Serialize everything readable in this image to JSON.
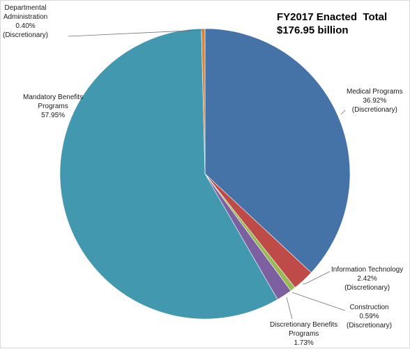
{
  "chart_data": {
    "type": "pie",
    "title": [
      "FY2017 Enacted  Total",
      "$176.95 billion"
    ],
    "slices": [
      {
        "name": "Medical Programs",
        "value": 36.92,
        "value_label": "36.92%",
        "note": "(Discretionary)",
        "color": "#4572a7"
      },
      {
        "name": "Information Technology",
        "value": 2.42,
        "value_label": "2.42%",
        "note": "(Discretionary)",
        "color": "#be4b48"
      },
      {
        "name": "Construction",
        "value": 0.59,
        "value_label": "0.59%",
        "note": "(Discretionary)",
        "color": "#98b954"
      },
      {
        "name": "Discretionary Benefits Programs",
        "value": 1.73,
        "value_label": "1.73%",
        "note": "",
        "color": "#7d60a0"
      },
      {
        "name": "Mandatory Benefits Programs",
        "value": 57.95,
        "value_label": "57.95%",
        "note": "",
        "color": "#4198af"
      },
      {
        "name": "Departmental Administration",
        "value": 0.4,
        "value_label": "0.40%",
        "note": "(Discretionary)",
        "color": "#db843d"
      }
    ],
    "label_lines": [
      [
        "Medical Programs",
        "36.92%",
        "(Discretionary)"
      ],
      [
        "Information Technology",
        "2.42%",
        "(Discretionary)"
      ],
      [
        "Construction",
        "0.59%",
        "(Discretionary)"
      ],
      [
        "Discretionary Benefits",
        "Programs",
        "1.73%"
      ],
      [
        "Mandatory Benefits",
        "Programs",
        "57.95%"
      ],
      [
        "Departmental",
        "Administration",
        "0.40%",
        "(Discretionary)"
      ]
    ]
  }
}
